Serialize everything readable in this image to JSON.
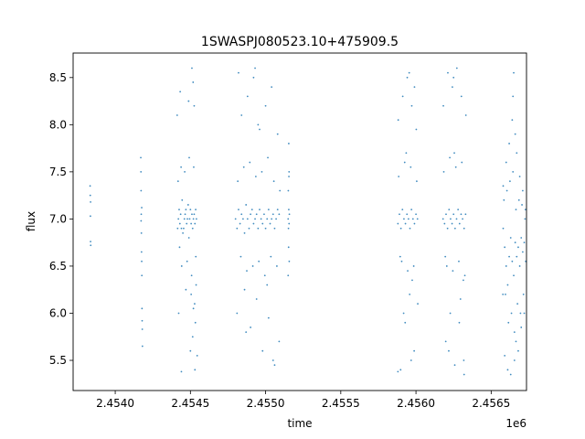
{
  "chart_data": {
    "type": "scatter",
    "title": "1SWASPJ080523.10+475909.5",
    "xlabel": "time",
    "ylabel": "flux",
    "x_offset_label": "1e6",
    "xlim": [
      2453720,
      2456735
    ],
    "ylim": [
      5.18,
      8.76
    ],
    "x_ticks": [
      {
        "value": 2454000,
        "label": "2.4540"
      },
      {
        "value": 2454500,
        "label": "2.4545"
      },
      {
        "value": 2455000,
        "label": "2.4550"
      },
      {
        "value": 2455500,
        "label": "2.4555"
      },
      {
        "value": 2456000,
        "label": "2.4560"
      },
      {
        "value": 2456500,
        "label": "2.4565"
      }
    ],
    "y_ticks": [
      {
        "value": 5.5,
        "label": "5.5"
      },
      {
        "value": 6.0,
        "label": "6.0"
      },
      {
        "value": 6.5,
        "label": "6.5"
      },
      {
        "value": 7.0,
        "label": "7.0"
      },
      {
        "value": 7.5,
        "label": "7.5"
      },
      {
        "value": 8.0,
        "label": "8.0"
      },
      {
        "value": 8.5,
        "label": "8.5"
      }
    ],
    "grid": false,
    "marker_color": "#1f77b4",
    "series": [
      {
        "points": [
          [
            2453833,
            7.35
          ],
          [
            2453834,
            7.25
          ],
          [
            2453835,
            7.03
          ],
          [
            2453836,
            6.76
          ],
          [
            2453837,
            6.72
          ],
          [
            2453836,
            7.18
          ],
          [
            2454170,
            7.65
          ],
          [
            2454171,
            7.5
          ],
          [
            2454172,
            7.3
          ],
          [
            2454173,
            7.05
          ],
          [
            2454174,
            6.85
          ],
          [
            2454175,
            6.65
          ],
          [
            2454176,
            6.55
          ],
          [
            2454177,
            6.4
          ],
          [
            2454178,
            6.05
          ],
          [
            2454179,
            5.92
          ],
          [
            2454180,
            5.83
          ],
          [
            2454181,
            5.65
          ],
          [
            2454172,
            6.98
          ],
          [
            2454176,
            7.12
          ],
          [
            2454415,
            6.9
          ],
          [
            2454420,
            7.0
          ],
          [
            2454425,
            7.1
          ],
          [
            2454430,
            6.95
          ],
          [
            2454435,
            7.05
          ],
          [
            2454440,
            6.9
          ],
          [
            2454445,
            7.2
          ],
          [
            2454418,
            7.4
          ],
          [
            2454428,
            6.7
          ],
          [
            2454438,
            7.55
          ],
          [
            2454412,
            8.1
          ],
          [
            2454422,
            6.0
          ],
          [
            2454432,
            8.35
          ],
          [
            2454442,
            6.5
          ],
          [
            2454450,
            6.85
          ],
          [
            2454455,
            6.9
          ],
          [
            2454460,
            7.0
          ],
          [
            2454465,
            7.05
          ],
          [
            2454470,
            7.1
          ],
          [
            2454475,
            6.95
          ],
          [
            2454480,
            7.0
          ],
          [
            2454485,
            7.15
          ],
          [
            2454490,
            6.8
          ],
          [
            2454495,
            7.0
          ],
          [
            2454500,
            7.1
          ],
          [
            2454505,
            6.95
          ],
          [
            2454510,
            7.05
          ],
          [
            2454515,
            6.9
          ],
          [
            2454520,
            7.0
          ],
          [
            2454525,
            7.05
          ],
          [
            2454530,
            6.95
          ],
          [
            2454535,
            7.1
          ],
          [
            2454540,
            7.0
          ],
          [
            2454462,
            7.5
          ],
          [
            2454478,
            6.55
          ],
          [
            2454492,
            7.65
          ],
          [
            2454508,
            6.4
          ],
          [
            2454522,
            7.55
          ],
          [
            2454536,
            6.6
          ],
          [
            2454488,
            8.25
          ],
          [
            2454510,
            8.6
          ],
          [
            2454518,
            8.45
          ],
          [
            2454525,
            8.2
          ],
          [
            2454500,
            5.6
          ],
          [
            2454515,
            5.75
          ],
          [
            2454528,
            6.1
          ],
          [
            2454533,
            5.9
          ],
          [
            2454538,
            6.3
          ],
          [
            2454505,
            6.2
          ],
          [
            2454520,
            6.05
          ],
          [
            2454530,
            5.4
          ],
          [
            2454545,
            5.55
          ],
          [
            2454440,
            5.38
          ],
          [
            2454470,
            6.25
          ],
          [
            2454800,
            7.0
          ],
          [
            2454810,
            6.9
          ],
          [
            2454820,
            7.1
          ],
          [
            2454830,
            6.95
          ],
          [
            2454840,
            7.05
          ],
          [
            2454850,
            7.0
          ],
          [
            2454860,
            6.85
          ],
          [
            2454870,
            7.15
          ],
          [
            2454880,
            7.0
          ],
          [
            2454890,
            6.9
          ],
          [
            2454900,
            7.05
          ],
          [
            2454910,
            7.1
          ],
          [
            2454920,
            6.95
          ],
          [
            2454930,
            7.0
          ],
          [
            2454940,
            7.05
          ],
          [
            2454950,
            6.9
          ],
          [
            2454960,
            7.1
          ],
          [
            2454970,
            7.0
          ],
          [
            2454980,
            6.95
          ],
          [
            2454990,
            7.05
          ],
          [
            2455000,
            6.9
          ],
          [
            2455010,
            7.0
          ],
          [
            2455020,
            7.1
          ],
          [
            2455030,
            6.95
          ],
          [
            2455040,
            7.0
          ],
          [
            2455050,
            7.05
          ],
          [
            2455060,
            6.9
          ],
          [
            2455070,
            7.0
          ],
          [
            2455080,
            7.1
          ],
          [
            2455090,
            7.05
          ],
          [
            2454815,
            7.4
          ],
          [
            2454835,
            6.6
          ],
          [
            2454855,
            7.55
          ],
          [
            2454875,
            6.45
          ],
          [
            2454895,
            7.6
          ],
          [
            2454915,
            6.5
          ],
          [
            2454935,
            7.45
          ],
          [
            2454955,
            6.55
          ],
          [
            2454975,
            7.5
          ],
          [
            2454995,
            6.4
          ],
          [
            2455015,
            7.65
          ],
          [
            2455035,
            6.6
          ],
          [
            2455055,
            7.4
          ],
          [
            2455075,
            6.5
          ],
          [
            2455095,
            7.3
          ],
          [
            2454820,
            8.55
          ],
          [
            2454840,
            8.1
          ],
          [
            2454860,
            6.25
          ],
          [
            2454880,
            8.3
          ],
          [
            2454900,
            5.85
          ],
          [
            2454920,
            8.5
          ],
          [
            2454940,
            6.15
          ],
          [
            2454960,
            7.95
          ],
          [
            2454980,
            5.6
          ],
          [
            2455000,
            8.2
          ],
          [
            2455020,
            5.95
          ],
          [
            2455040,
            8.4
          ],
          [
            2455060,
            5.45
          ],
          [
            2455080,
            7.9
          ],
          [
            2455090,
            5.7
          ],
          [
            2454810,
            6.0
          ],
          [
            2454870,
            5.8
          ],
          [
            2454930,
            8.6
          ],
          [
            2455010,
            6.3
          ],
          [
            2455050,
            5.5
          ],
          [
            2454950,
            8.0
          ],
          [
            2455150,
            7.0
          ],
          [
            2455152,
            6.9
          ],
          [
            2455154,
            7.1
          ],
          [
            2455156,
            6.95
          ],
          [
            2455158,
            7.05
          ],
          [
            2455151,
            7.3
          ],
          [
            2455153,
            6.7
          ],
          [
            2455155,
            7.45
          ],
          [
            2455157,
            6.55
          ],
          [
            2455150,
            6.4
          ],
          [
            2455156,
            7.5
          ],
          [
            2455154,
            7.8
          ],
          [
            2455880,
            6.95
          ],
          [
            2455890,
            7.05
          ],
          [
            2455900,
            6.9
          ],
          [
            2455910,
            7.1
          ],
          [
            2455920,
            7.0
          ],
          [
            2455930,
            6.95
          ],
          [
            2455940,
            7.05
          ],
          [
            2455950,
            7.0
          ],
          [
            2455960,
            6.9
          ],
          [
            2455970,
            7.1
          ],
          [
            2455980,
            7.0
          ],
          [
            2455990,
            6.95
          ],
          [
            2456000,
            7.05
          ],
          [
            2456010,
            7.0
          ],
          [
            2455885,
            7.45
          ],
          [
            2455905,
            6.55
          ],
          [
            2455925,
            7.6
          ],
          [
            2455945,
            6.45
          ],
          [
            2455965,
            7.55
          ],
          [
            2455985,
            6.5
          ],
          [
            2456005,
            7.4
          ],
          [
            2455895,
            6.6
          ],
          [
            2455935,
            7.7
          ],
          [
            2455975,
            6.35
          ],
          [
            2455882,
            8.05
          ],
          [
            2455898,
            5.4
          ],
          [
            2455912,
            8.3
          ],
          [
            2455928,
            5.9
          ],
          [
            2455942,
            8.5
          ],
          [
            2455958,
            6.2
          ],
          [
            2455972,
            8.2
          ],
          [
            2455988,
            5.6
          ],
          [
            2456002,
            7.95
          ],
          [
            2456012,
            6.1
          ],
          [
            2455955,
            8.55
          ],
          [
            2455968,
            5.5
          ],
          [
            2455918,
            6.0
          ],
          [
            2455990,
            8.4
          ],
          [
            2455880,
            5.38
          ],
          [
            2456180,
            7.0
          ],
          [
            2456190,
            6.95
          ],
          [
            2456200,
            7.05
          ],
          [
            2456210,
            6.9
          ],
          [
            2456220,
            7.1
          ],
          [
            2456230,
            7.0
          ],
          [
            2456240,
            6.95
          ],
          [
            2456250,
            7.05
          ],
          [
            2456260,
            6.9
          ],
          [
            2456270,
            7.0
          ],
          [
            2456280,
            7.1
          ],
          [
            2456290,
            6.95
          ],
          [
            2456300,
            7.05
          ],
          [
            2456310,
            7.0
          ],
          [
            2456320,
            6.9
          ],
          [
            2456330,
            7.05
          ],
          [
            2456185,
            7.5
          ],
          [
            2456205,
            6.5
          ],
          [
            2456225,
            7.65
          ],
          [
            2456245,
            6.45
          ],
          [
            2456265,
            7.55
          ],
          [
            2456285,
            6.55
          ],
          [
            2456305,
            7.6
          ],
          [
            2456325,
            6.4
          ],
          [
            2456195,
            6.6
          ],
          [
            2456255,
            7.7
          ],
          [
            2456315,
            6.35
          ],
          [
            2456182,
            8.2
          ],
          [
            2456198,
            5.7
          ],
          [
            2456212,
            8.55
          ],
          [
            2456228,
            6.0
          ],
          [
            2456242,
            8.4
          ],
          [
            2456258,
            5.45
          ],
          [
            2456272,
            8.6
          ],
          [
            2456288,
            5.9
          ],
          [
            2456302,
            8.3
          ],
          [
            2456318,
            5.5
          ],
          [
            2456332,
            8.1
          ],
          [
            2456250,
            8.5
          ],
          [
            2456296,
            6.15
          ],
          [
            2456320,
            5.35
          ],
          [
            2456218,
            5.6
          ],
          [
            2456580,
            6.9
          ],
          [
            2456590,
            6.7
          ],
          [
            2456600,
            6.5
          ],
          [
            2456610,
            6.3
          ],
          [
            2456620,
            6.6
          ],
          [
            2456630,
            6.8
          ],
          [
            2456640,
            6.55
          ],
          [
            2456650,
            6.4
          ],
          [
            2456660,
            6.75
          ],
          [
            2456670,
            6.6
          ],
          [
            2456680,
            6.7
          ],
          [
            2456690,
            6.5
          ],
          [
            2456700,
            6.8
          ],
          [
            2456710,
            6.65
          ],
          [
            2456720,
            6.75
          ],
          [
            2456730,
            6.55
          ],
          [
            2456585,
            7.2
          ],
          [
            2456595,
            6.2
          ],
          [
            2456605,
            7.3
          ],
          [
            2456615,
            5.9
          ],
          [
            2456625,
            7.4
          ],
          [
            2456635,
            6.0
          ],
          [
            2456645,
            7.5
          ],
          [
            2456655,
            5.8
          ],
          [
            2456665,
            7.1
          ],
          [
            2456675,
            6.1
          ],
          [
            2456685,
            7.2
          ],
          [
            2456695,
            6.0
          ],
          [
            2456705,
            7.15
          ],
          [
            2456715,
            6.2
          ],
          [
            2456725,
            7.0
          ],
          [
            2456590,
            5.55
          ],
          [
            2456600,
            7.6
          ],
          [
            2456610,
            5.4
          ],
          [
            2456620,
            7.8
          ],
          [
            2456630,
            5.35
          ],
          [
            2456640,
            8.05
          ],
          [
            2456645,
            8.3
          ],
          [
            2456650,
            8.55
          ],
          [
            2456655,
            5.5
          ],
          [
            2456660,
            7.9
          ],
          [
            2456665,
            5.7
          ],
          [
            2456670,
            7.7
          ],
          [
            2456680,
            5.6
          ],
          [
            2456690,
            7.45
          ],
          [
            2456700,
            5.85
          ],
          [
            2456710,
            7.3
          ],
          [
            2456720,
            6.0
          ],
          [
            2456728,
            7.1
          ],
          [
            2456580,
            7.35
          ],
          [
            2456578,
            6.2
          ]
        ]
      }
    ]
  }
}
